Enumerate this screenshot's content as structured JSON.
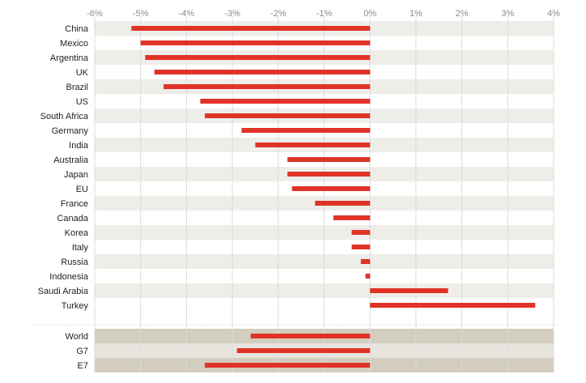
{
  "chart_data": {
    "type": "bar",
    "orientation": "horizontal",
    "xlim": [
      -6,
      4
    ],
    "x_ticks": [
      "-6%",
      "-5%",
      "-4%",
      "-3%",
      "-2%",
      "-1%",
      "0%",
      "1%",
      "2%",
      "3%",
      "4%"
    ],
    "x_tick_values": [
      -6,
      -5,
      -4,
      -3,
      -2,
      -1,
      0,
      1,
      2,
      3,
      4
    ],
    "grid": true,
    "bar_color": "#e03327",
    "band_color": "#efede8",
    "aggregate_band_colors": [
      "#d3cdbf",
      "#e7e4dd"
    ],
    "groups": [
      {
        "categories": [
          "China",
          "Mexico",
          "Argentina",
          "UK",
          "Brazil",
          "US",
          "South Africa",
          "Germany",
          "India",
          "Australia",
          "Japan",
          "EU",
          "France",
          "Canada",
          "Korea",
          "Italy",
          "Russia",
          "Indonesia",
          "Saudi Arabia",
          "Turkey"
        ],
        "values": [
          -5.2,
          -5.0,
          -4.9,
          -4.7,
          -4.5,
          -3.7,
          -3.6,
          -2.8,
          -2.5,
          -1.8,
          -1.8,
          -1.7,
          -1.2,
          -0.8,
          -0.4,
          -0.4,
          -0.2,
          -0.1,
          1.7,
          3.6
        ]
      },
      {
        "categories": [
          "World",
          "G7",
          "E7"
        ],
        "values": [
          -2.6,
          -2.9,
          -3.6
        ]
      }
    ]
  }
}
